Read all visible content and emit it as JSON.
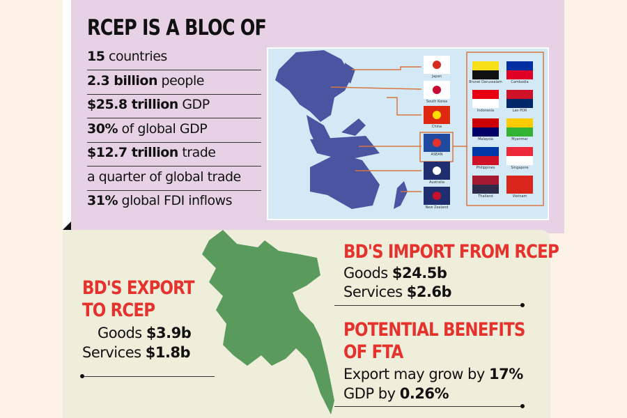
{
  "rcep": {
    "title": "RCEP IS A BLOC OF",
    "stats": [
      {
        "bold": "15",
        "rest": " countries"
      },
      {
        "bold": "2.3 billion",
        "rest": " people"
      },
      {
        "bold": "$25.8 trillion",
        "rest": " GDP"
      },
      {
        "bold": "30%",
        "rest": " of global GDP"
      },
      {
        "bold": "$12.7 trillion",
        "rest": " trade"
      },
      {
        "bold": "",
        "rest": "a quarter of global trade"
      },
      {
        "bold": "31%",
        "rest": " global FDI inflows"
      }
    ],
    "flags": [
      "Japan",
      "South Korea",
      "China",
      "ASEAN",
      "Australia",
      "New Zealand"
    ],
    "asean_flags": [
      "Brunei Darussalam",
      "Cambodia",
      "Indonesia",
      "Lao PDR",
      "Malaysia",
      "Myanmar",
      "Philippines",
      "Singapore",
      "Thailand",
      "Vietnam"
    ]
  },
  "export": {
    "title1": "BD'S EXPORT",
    "title2": "TO RCEP",
    "goods_label": "Goods ",
    "goods": "$3.9b",
    "services_label": "Services ",
    "services": "$1.8b"
  },
  "import": {
    "title": "BD'S IMPORT FROM RCEP",
    "goods_label": "Goods ",
    "goods": "$24.5b",
    "services_label": "Services ",
    "services": "$2.6b"
  },
  "benefits": {
    "title1": "POTENTIAL BENEFITS",
    "title2": "OF FTA",
    "line1": "Export may grow by ",
    "line1_value": "17%",
    "line2": "GDP by ",
    "line2_value": "0.26%"
  },
  "colors": {
    "accent": "#e5322d",
    "map_land": "#4a55a2",
    "bd_green": "#5a9a5c",
    "pink": "#e7d2e5",
    "beige": "#efeedb"
  }
}
